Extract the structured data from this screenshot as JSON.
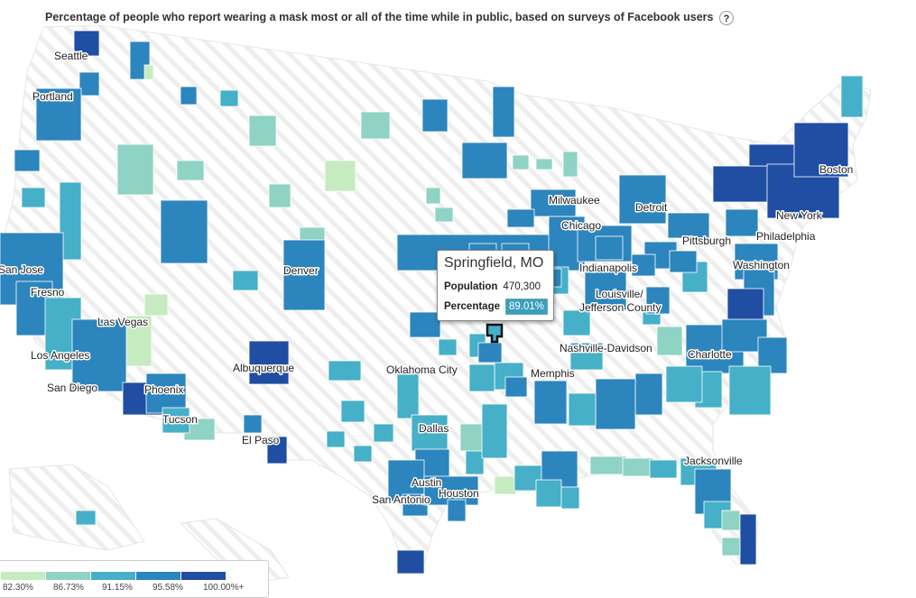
{
  "title": "Percentage of people who report wearing a mask most or all of the time while in public, based on surveys of Facebook users",
  "help_label": "?",
  "tooltip": {
    "place": "Springfield, MO",
    "population_label": "Population",
    "population_value": "470,300",
    "percentage_label": "Percentage",
    "percentage_value": "89.01%"
  },
  "legend": {
    "ticks": [
      "82.30%",
      "86.73%",
      "91.15%",
      "95.58%",
      "100.00%+"
    ],
    "colors": [
      "#c6ebc0",
      "#8ed3c4",
      "#45b0c7",
      "#2c85bd",
      "#1f4ea3"
    ]
  },
  "cities": [
    {
      "name": "Seattle"
    },
    {
      "name": "Portland"
    },
    {
      "name": "San Jose"
    },
    {
      "name": "Fresno"
    },
    {
      "name": "Las Vegas"
    },
    {
      "name": "Los Angeles"
    },
    {
      "name": "San Diego"
    },
    {
      "name": "Phoenix"
    },
    {
      "name": "Tucson"
    },
    {
      "name": "Albuquerque"
    },
    {
      "name": "El Paso"
    },
    {
      "name": "Denver"
    },
    {
      "name": "Oklahoma City"
    },
    {
      "name": "Dallas"
    },
    {
      "name": "Austin"
    },
    {
      "name": "San Antonio"
    },
    {
      "name": "Houston"
    },
    {
      "name": "Memphis"
    },
    {
      "name": "Nashville-Davidson"
    },
    {
      "name": "Louisville/"
    },
    {
      "name": "Jefferson County"
    },
    {
      "name": "Indianapolis"
    },
    {
      "name": "Chicago"
    },
    {
      "name": "Milwaukee"
    },
    {
      "name": "Detroit"
    },
    {
      "name": "Pittsburgh"
    },
    {
      "name": "Philadelphia"
    },
    {
      "name": "Washington"
    },
    {
      "name": "New York"
    },
    {
      "name": "Boston"
    },
    {
      "name": "Charlotte"
    },
    {
      "name": "Jacksonville"
    }
  ]
}
